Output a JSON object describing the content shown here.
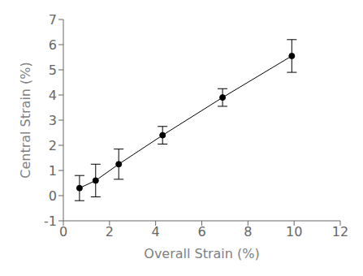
{
  "chart_data": {
    "type": "line",
    "xlabel": "Overall Strain (%)",
    "ylabel": "Central Strain (%)",
    "x": [
      0.7,
      1.4,
      2.4,
      4.3,
      6.9,
      9.9
    ],
    "values": [
      0.3,
      0.6,
      1.25,
      2.4,
      3.9,
      5.55
    ],
    "yerr": [
      0.5,
      0.65,
      0.6,
      0.35,
      0.35,
      0.65
    ],
    "xlim": [
      0,
      12
    ],
    "ylim": [
      -1,
      7
    ],
    "xticks": [
      0,
      2,
      4,
      6,
      8,
      10,
      12
    ],
    "yticks": [
      -1,
      0,
      1,
      2,
      3,
      4,
      5,
      6,
      7
    ],
    "color": "#000000",
    "marker": "circle",
    "grid": false
  }
}
